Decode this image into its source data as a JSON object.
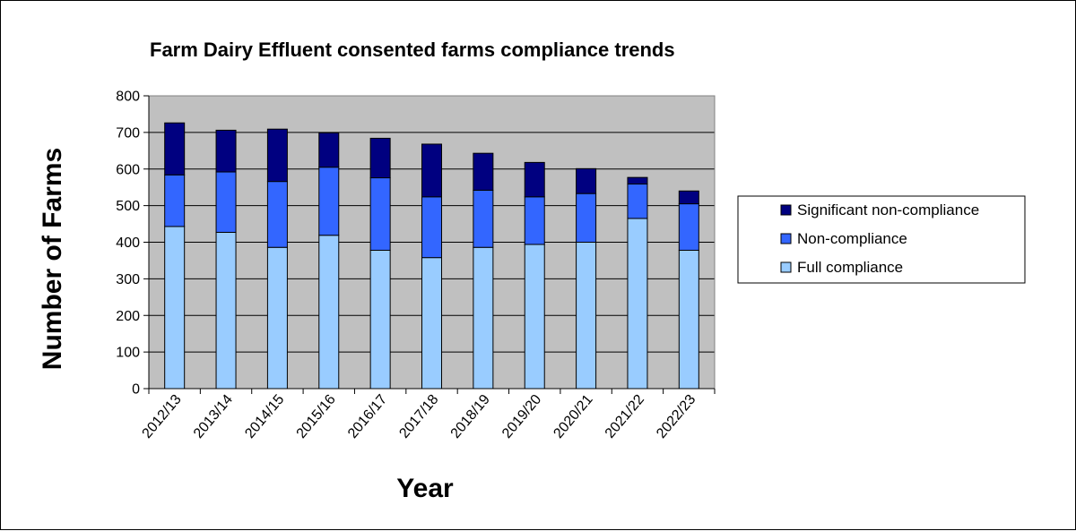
{
  "chart_data": {
    "type": "bar",
    "stacked": true,
    "title": "Farm Dairy Effluent consented farms compliance trends",
    "xlabel": "Year",
    "ylabel": "Number of Farms",
    "ylim": [
      0,
      800
    ],
    "yticks": [
      0,
      100,
      200,
      300,
      400,
      500,
      600,
      700,
      800
    ],
    "grid": true,
    "legend_position": "right",
    "plot_background": "#c0c0c0",
    "categories": [
      "2012/13",
      "2013/14",
      "2014/15",
      "2015/16",
      "2016/17",
      "2017/18",
      "2018/19",
      "2019/20",
      "2020/21",
      "2021/22",
      "2022/23"
    ],
    "series": [
      {
        "name": "Full compliance",
        "color": "#99ccff",
        "values": [
          443,
          427,
          386,
          419,
          378,
          358,
          386,
          394,
          400,
          465,
          378
        ]
      },
      {
        "name": "Non-compliance",
        "color": "#3366ff",
        "values": [
          141,
          165,
          180,
          186,
          198,
          166,
          156,
          130,
          133,
          94,
          127
        ]
      },
      {
        "name": "Significant non-compliance",
        "color": "#000080",
        "values": [
          142,
          114,
          143,
          94,
          108,
          144,
          101,
          94,
          68,
          18,
          35
        ]
      }
    ],
    "legend_order": [
      "Significant non-compliance",
      "Non-compliance",
      "Full compliance"
    ]
  }
}
